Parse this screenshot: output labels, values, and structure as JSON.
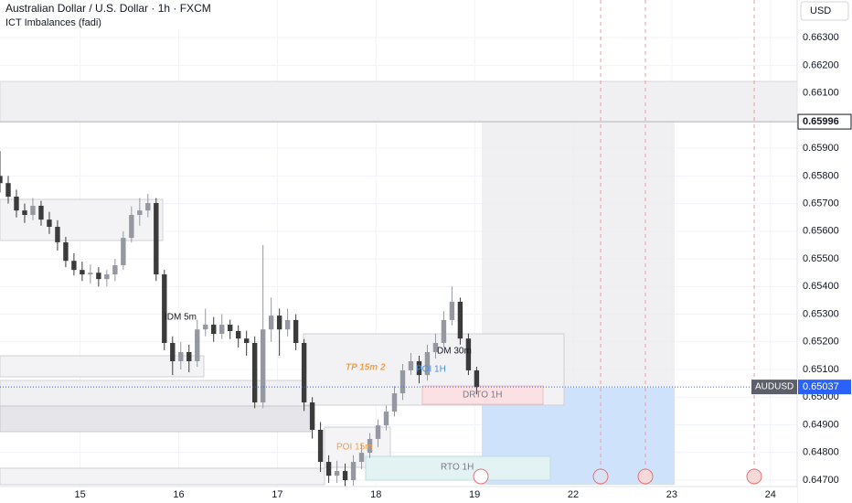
{
  "header": {
    "title": "Australian Dollar / U.S. Dollar · 1h · FXCM",
    "indicator": "ICT Imbalances (fadi)"
  },
  "chart_data": {
    "type": "candlestick",
    "currency": "USD",
    "x": [
      0,
      2,
      4,
      6,
      8,
      10,
      12,
      14,
      16,
      18,
      20,
      22,
      24,
      26,
      28,
      30,
      32,
      34,
      36,
      38,
      40,
      42,
      44,
      46,
      48,
      50,
      52,
      54,
      56,
      58,
      60,
      62,
      64,
      66,
      68,
      70,
      72,
      74,
      76,
      78,
      80,
      82,
      84,
      86,
      88,
      90,
      92,
      94,
      96,
      98,
      100,
      102,
      104,
      106,
      108,
      110,
      112,
      114,
      116
    ],
    "open": [
      0.658,
      0.65774,
      0.65725,
      0.65675,
      0.65659,
      0.65692,
      0.65642,
      0.65616,
      0.6556,
      0.65493,
      0.6546,
      0.65444,
      0.6545,
      0.65427,
      0.65444,
      0.65477,
      0.65576,
      0.65659,
      0.65675,
      0.65702,
      0.65444,
      0.65196,
      0.6513,
      0.65163,
      0.6513,
      0.65245,
      0.65262,
      0.65229,
      0.65262,
      0.65239,
      0.65212,
      0.65196,
      0.64981,
      0.65245,
      0.65295,
      0.65245,
      0.65279,
      0.65196,
      0.64981,
      0.64882,
      0.64766,
      0.64716,
      0.64733,
      0.647,
      0.64766,
      0.64799,
      0.64849,
      0.64898,
      0.64948,
      0.65014,
      0.65097,
      0.6513,
      0.6508,
      0.65163,
      0.65196,
      0.65279,
      0.65345,
      0.65212,
      0.65097
    ],
    "high": [
      0.6589,
      0.658,
      0.6575,
      0.657,
      0.6572,
      0.6571,
      0.6567,
      0.6564,
      0.6558,
      0.6552,
      0.6549,
      0.6548,
      0.6547,
      0.6546,
      0.655,
      0.656,
      0.6569,
      0.6572,
      0.65735,
      0.6572,
      0.6546,
      0.6522,
      0.652,
      0.6519,
      0.6528,
      0.6532,
      0.6529,
      0.653,
      0.6528,
      0.6526,
      0.6524,
      0.6522,
      0.6555,
      0.6536,
      0.6532,
      0.6532,
      0.653,
      0.6521,
      0.65,
      0.6491,
      0.6479,
      0.6477,
      0.6476,
      0.6479,
      0.6483,
      0.6487,
      0.6492,
      0.6497,
      0.6504,
      0.6512,
      0.6516,
      0.6515,
      0.6519,
      0.6523,
      0.6531,
      0.654,
      0.6536,
      0.6523,
      0.6511
    ],
    "low": [
      0.6574,
      0.657,
      0.6565,
      0.6563,
      0.6564,
      0.6562,
      0.6559,
      0.6553,
      0.6547,
      0.6544,
      0.6542,
      0.6541,
      0.654,
      0.654,
      0.6542,
      0.6546,
      0.6556,
      0.6562,
      0.6565,
      0.6542,
      0.6517,
      0.6508,
      0.651,
      0.6509,
      0.6511,
      0.6522,
      0.652,
      0.6521,
      0.6521,
      0.6518,
      0.6515,
      0.6496,
      0.6496,
      0.652,
      0.6515,
      0.6522,
      0.6517,
      0.6495,
      0.6485,
      0.6473,
      0.6469,
      0.6469,
      0.6467,
      0.6468,
      0.6474,
      0.6478,
      0.6482,
      0.6488,
      0.6493,
      0.6499,
      0.6508,
      0.6505,
      0.6506,
      0.6514,
      0.6518,
      0.6526,
      0.6519,
      0.6508,
      0.6501
    ],
    "close": [
      0.65774,
      0.65725,
      0.65675,
      0.65659,
      0.65692,
      0.65642,
      0.65616,
      0.6556,
      0.65493,
      0.6546,
      0.65444,
      0.6545,
      0.65427,
      0.65444,
      0.65477,
      0.65576,
      0.65659,
      0.65675,
      0.65702,
      0.65444,
      0.65196,
      0.6513,
      0.65163,
      0.6513,
      0.65245,
      0.65262,
      0.65229,
      0.65262,
      0.65239,
      0.65212,
      0.65196,
      0.64981,
      0.65245,
      0.65295,
      0.65245,
      0.65279,
      0.65196,
      0.64981,
      0.64882,
      0.64766,
      0.64716,
      0.64733,
      0.647,
      0.64766,
      0.64799,
      0.64849,
      0.64898,
      0.64948,
      0.65014,
      0.65097,
      0.6513,
      0.6508,
      0.65163,
      0.65196,
      0.65279,
      0.65345,
      0.65212,
      0.65097,
      0.65037
    ],
    "up_color": "#9598a1",
    "down_color": "#3b3b3b",
    "xlim": [
      0,
      194
    ],
    "ylim": [
      0.64667,
      0.66436
    ],
    "xticks": [
      {
        "value": 19.5,
        "label": "15"
      },
      {
        "value": 43.5,
        "label": "16"
      },
      {
        "value": 67.5,
        "label": "17"
      },
      {
        "value": 91.5,
        "label": "18"
      },
      {
        "value": 115.5,
        "label": "19"
      },
      {
        "value": 139.5,
        "label": "22"
      },
      {
        "value": 163.5,
        "label": "23"
      },
      {
        "value": 187.5,
        "label": "24"
      }
    ],
    "yticks": [
      {
        "value": 0.663,
        "label": "0.66300"
      },
      {
        "value": 0.662,
        "label": "0.66200"
      },
      {
        "value": 0.661,
        "label": "0.66100"
      },
      {
        "value": 0.659,
        "label": "0.65900"
      },
      {
        "value": 0.658,
        "label": "0.65800"
      },
      {
        "value": 0.657,
        "label": "0.65700"
      },
      {
        "value": 0.656,
        "label": "0.65600"
      },
      {
        "value": 0.655,
        "label": "0.65500"
      },
      {
        "value": 0.654,
        "label": "0.65400"
      },
      {
        "value": 0.653,
        "label": "0.65300"
      },
      {
        "value": 0.652,
        "label": "0.65200"
      },
      {
        "value": 0.651,
        "label": "0.65100"
      },
      {
        "value": 0.65,
        "label": "0.65000"
      },
      {
        "value": 0.649,
        "label": "0.64900"
      },
      {
        "value": 0.648,
        "label": "0.64800"
      },
      {
        "value": 0.647,
        "label": "0.64700"
      }
    ],
    "grid": true,
    "price_line": {
      "value": 0.65996,
      "label": "0.65996"
    },
    "last_price": {
      "name": "AUDUSD",
      "value": 0.65037,
      "label": "0.65037",
      "color": "#2962ff"
    },
    "annotations": [
      "IDM 5m",
      "TP 15m 2",
      "POI 1H",
      "DM 30m",
      "DRTO 1H",
      "POI 15m",
      "RTO 1H"
    ]
  }
}
